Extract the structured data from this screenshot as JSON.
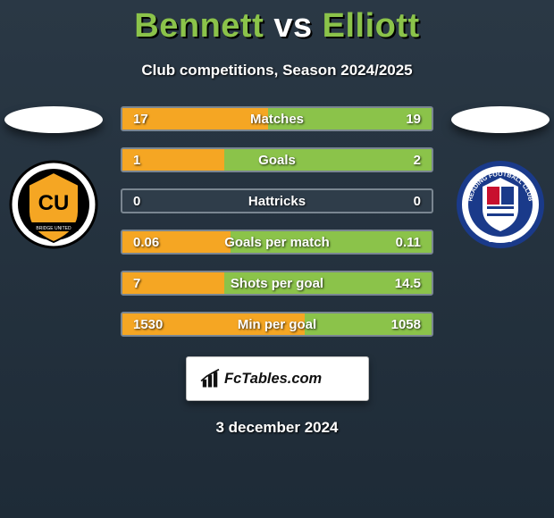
{
  "title": {
    "player1": "Bennett",
    "vs": "vs",
    "player2": "Elliott"
  },
  "subtitle": "Club competitions, Season 2024/2025",
  "colors": {
    "accent_title": "#8bc34a",
    "bar_left": "#f5a623",
    "bar_right": "#8bc34a",
    "bar_border": "#7a8691",
    "background": "#2a3845"
  },
  "players": {
    "left": {
      "club_abbr": "CU",
      "logo_colors": {
        "outer": "#000",
        "inner": "#f5a623"
      }
    },
    "right": {
      "club_name": "Reading Football Club",
      "est": "EST 1871"
    }
  },
  "stats": [
    {
      "label": "Matches",
      "left_val": "17",
      "right_val": "19",
      "left_pct": 47,
      "right_pct": 53
    },
    {
      "label": "Goals",
      "left_val": "1",
      "right_val": "2",
      "left_pct": 33,
      "right_pct": 67
    },
    {
      "label": "Hattricks",
      "left_val": "0",
      "right_val": "0",
      "left_pct": 0,
      "right_pct": 0
    },
    {
      "label": "Goals per match",
      "left_val": "0.06",
      "right_val": "0.11",
      "left_pct": 35,
      "right_pct": 65
    },
    {
      "label": "Shots per goal",
      "left_val": "7",
      "right_val": "14.5",
      "left_pct": 33,
      "right_pct": 67
    },
    {
      "label": "Min per goal",
      "left_val": "1530",
      "right_val": "1058",
      "left_pct": 59,
      "right_pct": 41
    }
  ],
  "footer": {
    "brand": "FcTables.com"
  },
  "date": "3 december 2024"
}
